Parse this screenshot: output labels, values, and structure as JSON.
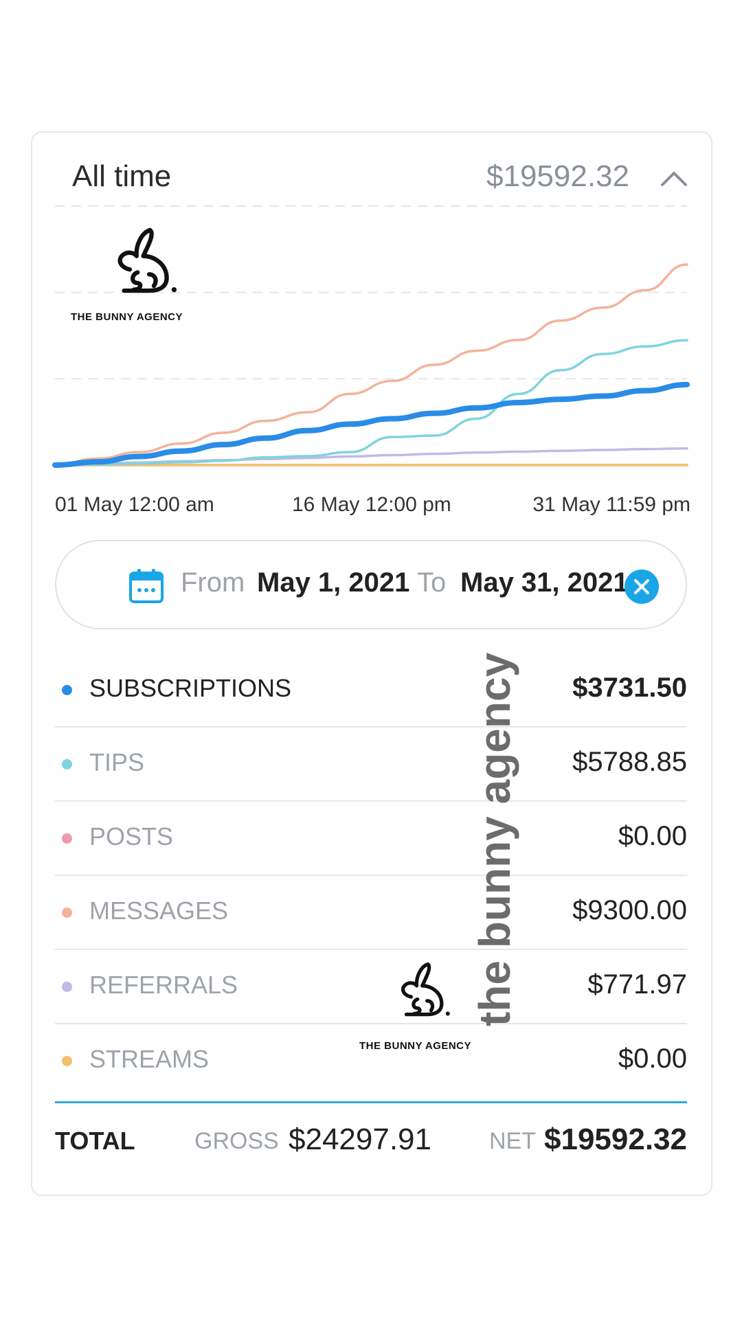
{
  "header": {
    "title": "All time",
    "amount": "$19592.32",
    "collapse_icon": "chevron-up-icon"
  },
  "chart_data": {
    "type": "line",
    "x_labels": [
      "01 May 12:00 am",
      "16 May 12:00 pm",
      "31 May 11:59 pm"
    ],
    "series": [
      {
        "key": "subscriptions",
        "color": "#2a8ce6",
        "values": [
          0,
          150,
          400,
          650,
          950,
          1250,
          1600,
          1900,
          2150,
          2400,
          2650,
          2900,
          3050,
          3200,
          3450,
          3731.5
        ]
      },
      {
        "key": "tips",
        "color": "#7fd3e0",
        "values": [
          0,
          30,
          80,
          130,
          200,
          360,
          420,
          600,
          1300,
          1370,
          2150,
          3300,
          4400,
          5150,
          5500,
          5788.85
        ]
      },
      {
        "key": "posts",
        "color": "#ee9ab0",
        "values": [
          0,
          0,
          0,
          0,
          0,
          0,
          0,
          0,
          0,
          0,
          0,
          0,
          0,
          0,
          0,
          0
        ]
      },
      {
        "key": "messages",
        "color": "#f3b39a",
        "values": [
          0,
          300,
          600,
          1000,
          1500,
          2050,
          2450,
          3300,
          3900,
          4650,
          5300,
          5800,
          6700,
          7300,
          8100,
          9300
        ]
      },
      {
        "key": "referrals",
        "color": "#c2b9e6",
        "values": [
          0,
          60,
          120,
          180,
          230,
          280,
          330,
          400,
          460,
          520,
          580,
          620,
          660,
          700,
          740,
          771.97
        ]
      },
      {
        "key": "streams",
        "color": "#f2c070",
        "values": [
          0,
          0,
          0,
          0,
          0,
          0,
          0,
          0,
          0,
          0,
          0,
          0,
          0,
          0,
          0,
          0
        ]
      }
    ],
    "grid": true,
    "legend": "none"
  },
  "range": {
    "from_label": "From",
    "from_date": "May 1, 2021",
    "to_label": "To",
    "to_date": "May 31, 2021",
    "calendar_icon": "calendar-icon",
    "clear_icon": "clear-icon"
  },
  "breakdown": [
    {
      "label": "SUBSCRIPTIONS",
      "value": "$3731.50",
      "color": "#2a8ce6"
    },
    {
      "label": "TIPS",
      "value": "$5788.85",
      "color": "#7fd3e0"
    },
    {
      "label": "POSTS",
      "value": "$0.00",
      "color": "#ee9ab0"
    },
    {
      "label": "MESSAGES",
      "value": "$9300.00",
      "color": "#f3b39a"
    },
    {
      "label": "REFERRALS",
      "value": "$771.97",
      "color": "#c2b9e6"
    },
    {
      "label": "STREAMS",
      "value": "$0.00",
      "color": "#f2c070"
    }
  ],
  "totals": {
    "total_label": "TOTAL",
    "gross_label": "GROSS",
    "gross_value": "$24297.91",
    "net_label": "NET",
    "net_value": "$19592.32"
  },
  "watermark": {
    "logo_text": "THE BUNNY AGENCY",
    "vertical_text": "the bunny agency"
  }
}
